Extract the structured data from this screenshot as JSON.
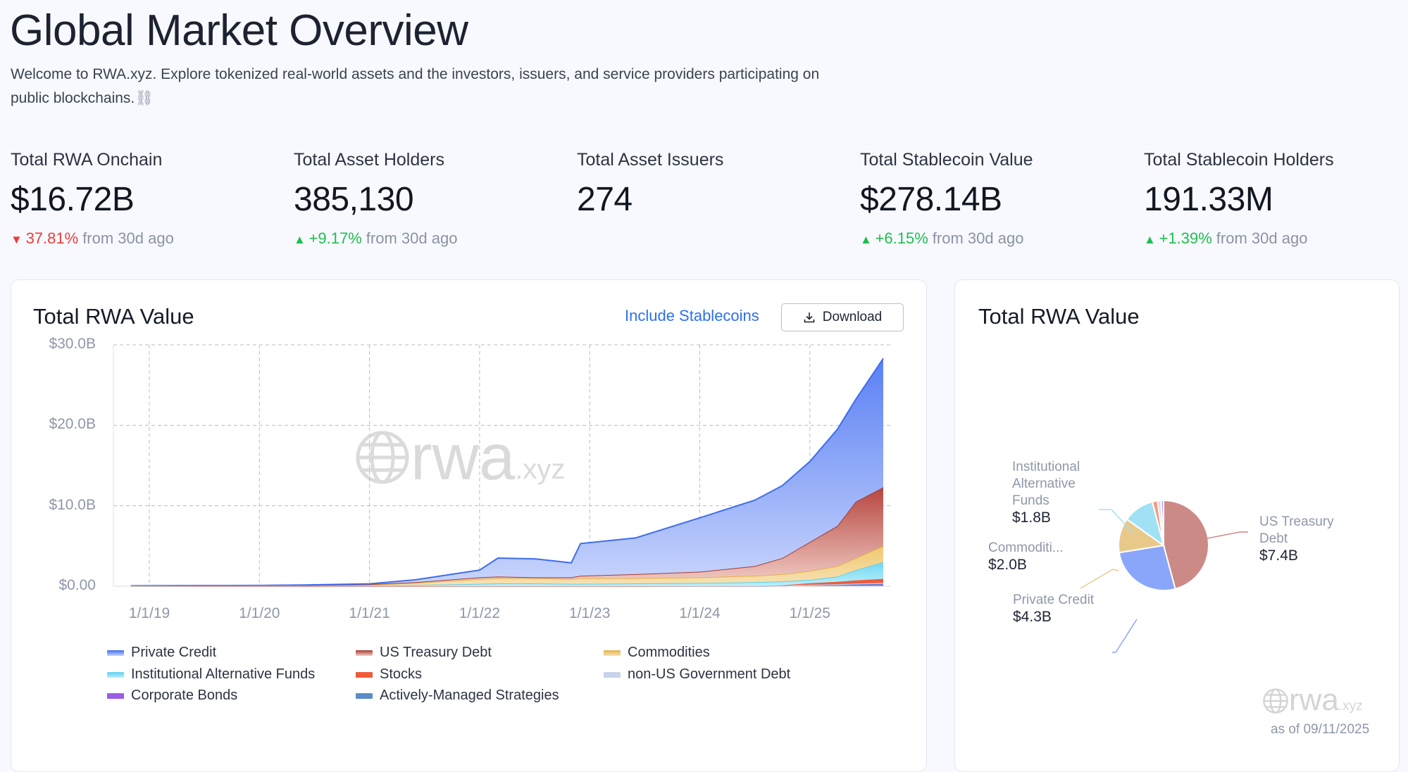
{
  "header": {
    "title": "Global Market Overview",
    "subtitle_line1": "Welcome to RWA.xyz. Explore tokenized real-world assets and the investors, issuers, and service providers participating on",
    "subtitle_line2": "public blockchains.",
    "subtitle_icon": "chain-icon"
  },
  "stats": [
    {
      "label": "Total RWA Onchain",
      "value": "$16.72B",
      "change": "37.81%",
      "direction": "down",
      "suffix": "from 30d ago"
    },
    {
      "label": "Total Asset Holders",
      "value": "385,130",
      "change": "+9.17%",
      "direction": "up",
      "suffix": "from 30d ago"
    },
    {
      "label": "Total Asset Issuers",
      "value": "274"
    },
    {
      "label": "Total Stablecoin Value",
      "value": "$278.14B",
      "change": "+6.15%",
      "direction": "up",
      "suffix": "from 30d ago"
    },
    {
      "label": "Total Stablecoin Holders",
      "value": "191.33M",
      "change": "+1.39%",
      "direction": "up",
      "suffix": "from 30d ago"
    }
  ],
  "area_card": {
    "title": "Total RWA Value",
    "include_stablecoins": "Include Stablecoins",
    "download": "Download",
    "watermark": "rwa.xyz"
  },
  "pie_card": {
    "title": "Total RWA Value",
    "watermark": "rwa.xyz",
    "as_of": "as of 09/11/2025"
  },
  "colors": {
    "accent": "#2e6ff2",
    "up": "#1fbf4f",
    "down": "#ef3b3b"
  },
  "chart_data": [
    {
      "type": "area",
      "stacked": true,
      "grid": true,
      "legend": "bottom",
      "y_ticks": [
        "$0.00",
        "$10.0B",
        "$20.0B",
        "$30.0B"
      ],
      "ylim": [
        0,
        30
      ],
      "x_ticks": [
        "1/1/19",
        "1/1/20",
        "1/1/21",
        "1/1/22",
        "1/1/23",
        "1/1/24",
        "1/1/25"
      ],
      "x": [
        "2018-11",
        "2019-06",
        "2020-01",
        "2020-06",
        "2021-01",
        "2021-06",
        "2022-01",
        "2022-03",
        "2022-07",
        "2022-11",
        "2022-12",
        "2023-06",
        "2024-01",
        "2024-07",
        "2024-10",
        "2025-01",
        "2025-04",
        "2025-06",
        "2025-09"
      ],
      "series": [
        {
          "name": "Corporate Bonds",
          "color": "#9b5de5",
          "values": [
            0,
            0,
            0,
            0,
            0,
            0,
            0,
            0,
            0,
            0,
            0,
            0,
            0,
            0,
            0.05,
            0.1,
            0.15,
            0.2,
            0.25
          ]
        },
        {
          "name": "Actively-Managed Strategies",
          "color": "#5b8cc9",
          "values": [
            0,
            0,
            0,
            0,
            0,
            0,
            0,
            0,
            0,
            0,
            0,
            0,
            0,
            0,
            0,
            0,
            0,
            0.03,
            0.05
          ]
        },
        {
          "name": "non-US Government Debt",
          "color": "#c9d3ea",
          "values": [
            0,
            0,
            0,
            0,
            0,
            0,
            0,
            0,
            0,
            0,
            0,
            0,
            0.02,
            0.03,
            0.05,
            0.08,
            0.1,
            0.1,
            0.12
          ]
        },
        {
          "name": "Stocks",
          "color": "#f05a3a",
          "values": [
            0,
            0,
            0,
            0,
            0,
            0,
            0,
            0,
            0,
            0,
            0,
            0,
            0,
            0,
            0,
            0.2,
            0.3,
            0.4,
            0.5
          ]
        },
        {
          "name": "Institutional Alternative Funds",
          "color": "#5fd0ee",
          "values": [
            0.02,
            0.04,
            0.06,
            0.08,
            0.1,
            0.15,
            0.3,
            0.35,
            0.35,
            0.3,
            0.3,
            0.35,
            0.38,
            0.47,
            0.5,
            0.42,
            0.65,
            1.27,
            2.08
          ]
        },
        {
          "name": "Commodities",
          "color": "#e3b24c",
          "values": [
            0.01,
            0.01,
            0.01,
            0.02,
            0.1,
            0.25,
            0.6,
            0.65,
            0.65,
            0.6,
            0.7,
            0.65,
            0.7,
            0.8,
            0.9,
            1.1,
            1.3,
            1.5,
            2.0
          ]
        },
        {
          "name": "US Treasury Debt",
          "color": "#a83a32",
          "values": [
            0.01,
            0.01,
            0.01,
            0.02,
            0.05,
            0.1,
            0.2,
            0.2,
            0.1,
            0.2,
            0.3,
            0.5,
            0.7,
            1.2,
            2.0,
            3.6,
            5.0,
            7.0,
            7.3
          ]
        },
        {
          "name": "Private Credit",
          "color": "#3d6cf0",
          "values": [
            0.01,
            0.02,
            0.02,
            0.03,
            0.05,
            0.3,
            0.9,
            2.3,
            2.3,
            1.8,
            4.0,
            4.5,
            6.7,
            8.2,
            9.0,
            10.0,
            12.0,
            12.7,
            16.0
          ]
        }
      ],
      "legend_order": [
        "Private Credit",
        "US Treasury Debt",
        "Commodities",
        "Institutional Alternative Funds",
        "Stocks",
        "non-US Government Debt",
        "Corporate Bonds",
        "Actively-Managed Strategies"
      ]
    },
    {
      "type": "pie",
      "slices": [
        {
          "name": "US Treasury Debt",
          "value": 7.4,
          "label": "US Treasury Debt",
          "value_label": "$7.4B",
          "color": "#cc8a86"
        },
        {
          "name": "Private Credit",
          "value": 4.3,
          "label": "Private Credit",
          "value_label": "$4.3B",
          "color": "#8aa6fb"
        },
        {
          "name": "Commodities",
          "value": 2.0,
          "label": "Commoditi...",
          "value_label": "$2.0B",
          "color": "#e8c98a"
        },
        {
          "name": "Institutional Alternative Funds",
          "value": 1.8,
          "label": "Institutional Alternative Funds",
          "value_label": "$1.8B",
          "color": "#a0e2f4"
        },
        {
          "name": "Stocks",
          "value": 0.3,
          "color": "#f99a80"
        },
        {
          "name": "non-US Government Debt",
          "value": 0.2,
          "color": "#d6dde9"
        },
        {
          "name": "Corporate Bonds",
          "value": 0.15,
          "color": "#c49cf5"
        }
      ]
    }
  ]
}
